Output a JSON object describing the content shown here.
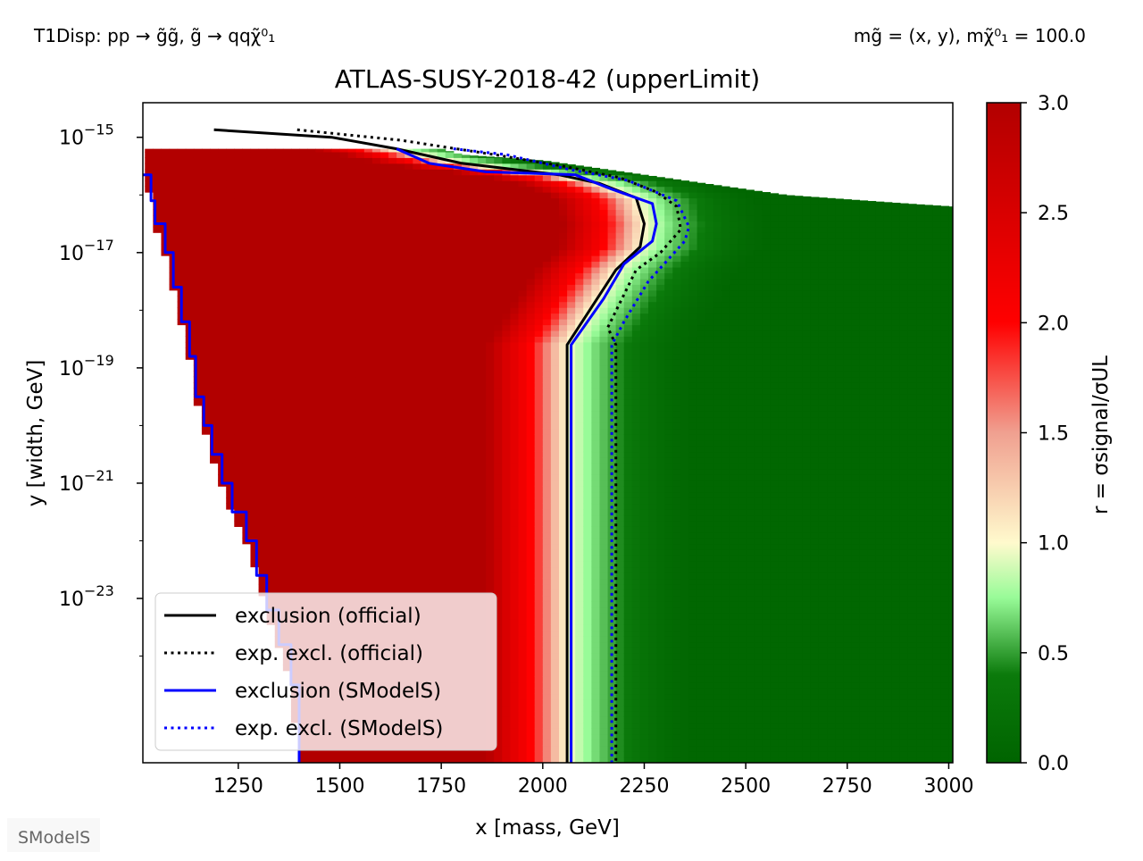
{
  "annotations": {
    "process": "T1Disp: pp → g̃g̃, g̃ → qqχ̃⁰₁",
    "masses": "mg̃ = (x, y), mχ̃⁰₁ = 100.0",
    "logo": "SModelS"
  },
  "chart_data": {
    "type": "heatmap",
    "title": "ATLAS-SUSY-2018-42 (upperLimit)",
    "xlabel": "x [mass, GeV]",
    "ylabel": "y [width, GeV]",
    "colorbar_label": "r = σsignal/σUL",
    "xlim": [
      1015,
      3010
    ],
    "ylim_log10": [
      -25.85,
      -14.4
    ],
    "y_scale": "log",
    "x_ticks": [
      1250,
      1500,
      1750,
      2000,
      2250,
      2500,
      2750,
      3000
    ],
    "y_ticks": [
      {
        "exp": -15,
        "label": "10",
        "sup": "−15"
      },
      {
        "exp": -17,
        "label": "10",
        "sup": "−17"
      },
      {
        "exp": -19,
        "label": "10",
        "sup": "−19"
      },
      {
        "exp": -21,
        "label": "10",
        "sup": "−21"
      },
      {
        "exp": -23,
        "label": "10",
        "sup": "−23"
      }
    ],
    "colorbar": {
      "range": [
        0.0,
        3.0
      ],
      "ticks": [
        "0.0",
        "0.5",
        "1.0",
        "1.5",
        "2.0",
        "2.5",
        "3.0"
      ],
      "stops": [
        {
          "v": 0.0,
          "color": "#006400"
        },
        {
          "v": 0.4,
          "color": "#0b7a0b"
        },
        {
          "v": 0.75,
          "color": "#98fb98"
        },
        {
          "v": 1.0,
          "color": "#fffacd"
        },
        {
          "v": 1.5,
          "color": "#f0a090"
        },
        {
          "v": 2.0,
          "color": "#ff0000"
        },
        {
          "v": 3.0,
          "color": "#b20000"
        }
      ]
    },
    "data_region": {
      "top_log10_by_x": [
        [
          1015,
          -15.2
        ],
        [
          1500,
          -15.2
        ],
        [
          1750,
          -15.2
        ],
        [
          1800,
          -15.3
        ],
        [
          1900,
          -15.35
        ],
        [
          2000,
          -15.4
        ],
        [
          2100,
          -15.5
        ],
        [
          2200,
          -15.6
        ],
        [
          2300,
          -15.7
        ],
        [
          2400,
          -15.8
        ],
        [
          2500,
          -15.9
        ],
        [
          2600,
          -16.0
        ],
        [
          2700,
          -16.05
        ],
        [
          2800,
          -16.1
        ],
        [
          2900,
          -16.15
        ],
        [
          3010,
          -16.2
        ]
      ],
      "left_mass_by_log10y": [
        [
          -15.65,
          1015
        ],
        [
          -16.1,
          1035
        ],
        [
          -16.5,
          1045
        ],
        [
          -17.0,
          1070
        ],
        [
          -17.6,
          1090
        ],
        [
          -18.2,
          1110
        ],
        [
          -18.8,
          1130
        ],
        [
          -19.5,
          1145
        ],
        [
          -20.0,
          1165
        ],
        [
          -20.5,
          1185
        ],
        [
          -21.0,
          1210
        ],
        [
          -21.5,
          1235
        ],
        [
          -22.0,
          1270
        ],
        [
          -22.6,
          1295
        ],
        [
          -23.2,
          1320
        ],
        [
          -23.8,
          1350
        ],
        [
          -24.5,
          1380
        ],
        [
          -25.85,
          1400
        ]
      ]
    },
    "r_profile": {
      "description": "r as a function of mass at each width: r = f(x - boundary(y)), boundary = official exclusion mass",
      "offsets_GeV": [
        -400,
        -200,
        -150,
        -100,
        -60,
        -30,
        0,
        30,
        60,
        100,
        130,
        160,
        200,
        250,
        300
      ],
      "r_values": [
        3.0,
        3.0,
        2.5,
        2.1,
        1.7,
        1.35,
        1.0,
        0.85,
        0.7,
        0.55,
        0.45,
        0.35,
        0.22,
        0.12,
        0.05
      ]
    },
    "series": [
      {
        "name": "exclusion (official)",
        "color": "#000000",
        "style": "solid",
        "x": [
          1190,
          1480,
          1640,
          1800,
          2040,
          2140,
          2230,
          2250,
          2240,
          2180,
          2060,
          2060
        ],
        "y_log10": [
          -14.87,
          -15.0,
          -15.2,
          -15.45,
          -15.65,
          -15.8,
          -16.05,
          -16.5,
          -16.9,
          -17.3,
          -18.6,
          -25.85
        ]
      },
      {
        "name": "exp. excl. (official)",
        "color": "#000000",
        "style": "dotted",
        "x": [
          1395,
          1650,
          1880,
          2050,
          2190,
          2280,
          2330,
          2340,
          2290,
          2230,
          2160,
          2180,
          2180
        ],
        "y_log10": [
          -14.87,
          -15.05,
          -15.3,
          -15.5,
          -15.7,
          -15.95,
          -16.2,
          -16.6,
          -17.0,
          -17.3,
          -18.3,
          -18.6,
          -25.85
        ]
      },
      {
        "name": "exclusion (SModelS)",
        "color": "#0000ff",
        "style": "solid",
        "x": [
          1640,
          1720,
          1860,
          2080,
          2170,
          2270,
          2280,
          2270,
          2200,
          2150,
          2070,
          2070
        ],
        "y_log10": [
          -15.2,
          -15.45,
          -15.6,
          -15.65,
          -15.9,
          -16.15,
          -16.5,
          -16.8,
          -17.2,
          -17.8,
          -18.6,
          -25.85
        ]
      },
      {
        "name": "exp. excl. (SModelS)",
        "color": "#0000ff",
        "style": "dotted",
        "x": [
          1780,
          1910,
          2060,
          2210,
          2330,
          2360,
          2350,
          2260,
          2200,
          2170,
          2170
        ],
        "y_log10": [
          -15.2,
          -15.3,
          -15.55,
          -15.75,
          -16.1,
          -16.55,
          -16.8,
          -17.5,
          -18.2,
          -18.6,
          -25.85
        ]
      },
      {
        "name": "left boundary",
        "color": "#0000ff",
        "style": "solid",
        "x": [
          1015,
          1035,
          1035,
          1045,
          1045,
          1070,
          1070,
          1090,
          1090,
          1110,
          1110,
          1130,
          1130,
          1145,
          1145,
          1165,
          1165,
          1185,
          1185,
          1210,
          1210,
          1235,
          1235,
          1270,
          1270,
          1295,
          1295,
          1320,
          1320,
          1350,
          1350,
          1380,
          1380,
          1400,
          1400
        ],
        "y_log10": [
          -15.65,
          -15.65,
          -16.1,
          -16.1,
          -16.5,
          -16.5,
          -17.0,
          -17.0,
          -17.6,
          -17.6,
          -18.2,
          -18.2,
          -18.8,
          -18.8,
          -19.5,
          -19.5,
          -20.0,
          -20.0,
          -20.5,
          -20.5,
          -21.0,
          -21.0,
          -21.5,
          -21.5,
          -22.0,
          -22.0,
          -22.6,
          -22.6,
          -23.2,
          -23.2,
          -23.8,
          -23.8,
          -24.5,
          -24.5,
          -25.85
        ]
      }
    ],
    "legend": {
      "placement": "lower-left",
      "entries": [
        "exclusion (official)",
        "exp. excl. (official)",
        "exclusion (SModelS)",
        "exp. excl. (SModelS)"
      ]
    },
    "grid": false
  }
}
